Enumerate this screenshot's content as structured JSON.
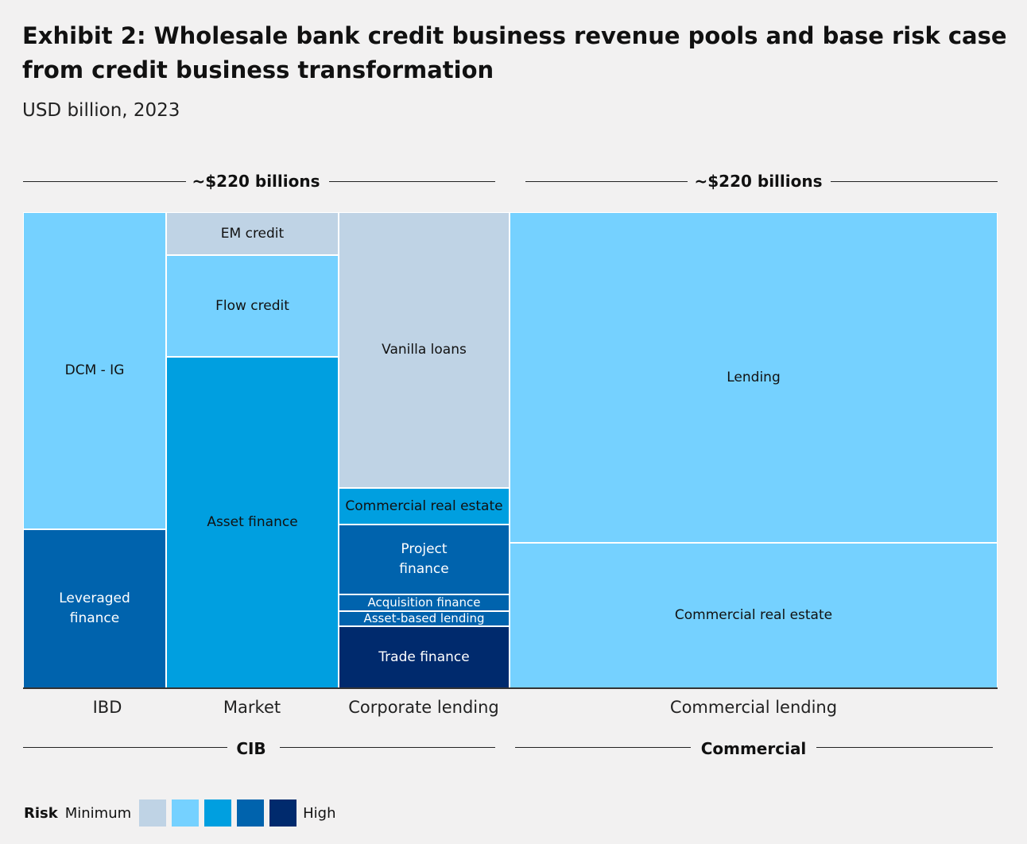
{
  "title": "Exhibit 2: Wholesale bank credit business revenue pools and base risk case from credit business transformation",
  "subtitle": "USD billion, 2023",
  "top_brackets": [
    {
      "label": "~$220 billions"
    },
    {
      "label": "~$220 billions"
    }
  ],
  "bottom_brackets": [
    {
      "label": "CIB"
    },
    {
      "label": "Commercial"
    }
  ],
  "risk_colors": {
    "1": "#bfd3e5",
    "2": "#75d1ff",
    "3": "#009fe0",
    "4": "#0063ad",
    "5": "#002a6d"
  },
  "chart_data": {
    "type": "marimekko",
    "title": "Exhibit 2: Wholesale bank credit business revenue pools and base risk case from credit business transformation",
    "unit": "USD billion, 2023",
    "groups": [
      {
        "name": "CIB",
        "total_label": "~$220 billions",
        "columns": [
          "IBD",
          "Market",
          "Corporate lending"
        ]
      },
      {
        "name": "Commercial",
        "total_label": "~$220 billions",
        "columns": [
          "Commercial lending"
        ]
      }
    ],
    "columns": [
      {
        "category": "IBD",
        "segments": [
          {
            "label": "DCM - IG",
            "risk": 2,
            "share": 0.666
          },
          {
            "label": "Leveraged\nfinance",
            "risk": 4,
            "share": 0.334
          }
        ]
      },
      {
        "category": "Market",
        "segments": [
          {
            "label": "EM credit",
            "risk": 1,
            "share": 0.09
          },
          {
            "label": "Flow credit",
            "risk": 2,
            "share": 0.213
          },
          {
            "label": "Asset finance",
            "risk": 3,
            "share": 0.697
          }
        ]
      },
      {
        "category": "Corporate lending",
        "segments": [
          {
            "label": "Vanilla loans",
            "risk": 1,
            "share": 0.58
          },
          {
            "label": "Commercial real estate",
            "risk": 3,
            "share": 0.077
          },
          {
            "label": "Project\nfinance",
            "risk": 4,
            "share": 0.147
          },
          {
            "label": "Acquisition finance",
            "risk": 4,
            "share": 0.035
          },
          {
            "label": "Asset-based lending",
            "risk": 4,
            "share": 0.032
          },
          {
            "label": "Trade finance",
            "risk": 5,
            "share": 0.129
          }
        ]
      },
      {
        "category": "Commercial lending",
        "segments": [
          {
            "label": "Lending",
            "risk": 2,
            "share": 0.695
          },
          {
            "label": "Commercial real estate",
            "risk": 2,
            "share": 0.305
          }
        ]
      }
    ],
    "legend": {
      "title": "Risk",
      "min_label": "Minimum",
      "max_label": "High",
      "levels": 5
    }
  }
}
